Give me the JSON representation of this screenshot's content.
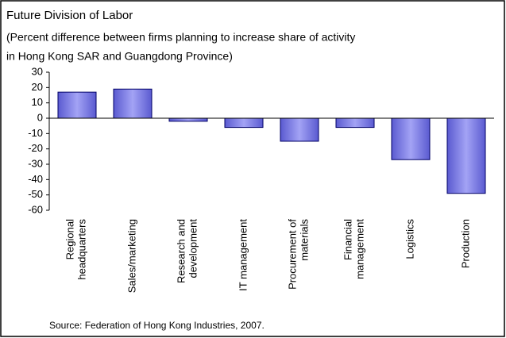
{
  "chart_data": {
    "type": "bar",
    "title": "Future Division of Labor",
    "subtitle": [
      "(Percent difference between firms planning to increase share of activity",
      "in Hong Kong SAR and Guangdong Province)"
    ],
    "categories": [
      "Regional\nheadquarters",
      "Sales/marketing",
      "Research and\ndevelopment",
      "IT management",
      "Procurement of\nmaterials",
      "Financial\nmanagement",
      "Logistics",
      "Production"
    ],
    "values": [
      17,
      19,
      -2,
      -6,
      -15,
      -6,
      -27,
      -49
    ],
    "color": "#a3a3f5",
    "ylim": [
      -60,
      30
    ],
    "yticks": [
      -60,
      -50,
      -40,
      -30,
      -20,
      -10,
      0,
      10,
      20,
      30
    ],
    "source": "Source: Federation of Hong Kong Industries, 2007."
  }
}
